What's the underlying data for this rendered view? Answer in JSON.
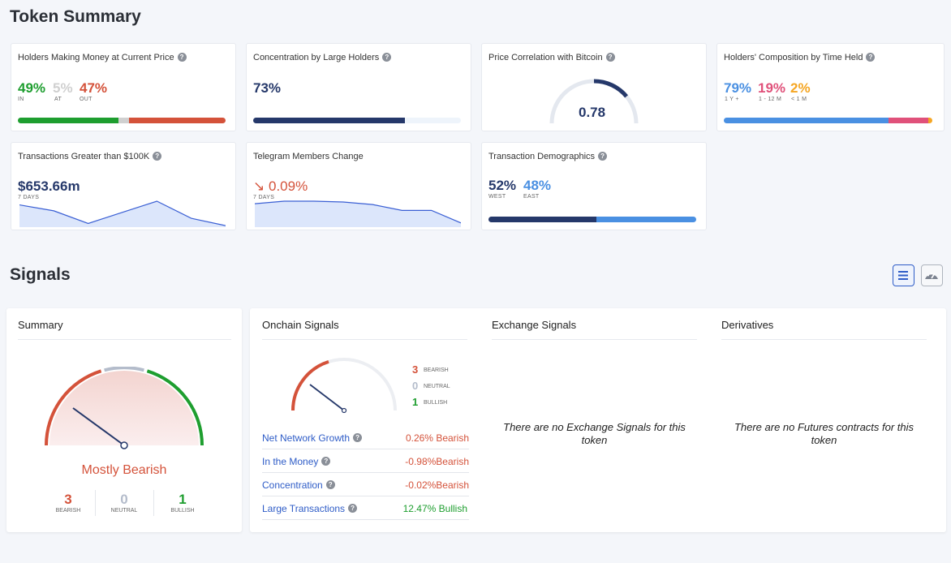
{
  "page": {
    "token_summary_title": "Token Summary",
    "signals_title": "Signals"
  },
  "cards": {
    "holders_money": {
      "label": "Holders Making Money at Current Price",
      "in_pct": "49%",
      "in_label": "IN",
      "at_pct": "5%",
      "at_label": "AT",
      "out_pct": "47%",
      "out_label": "OUT",
      "split": [
        49,
        5,
        47
      ]
    },
    "concentration": {
      "label": "Concentration by Large Holders",
      "value": "73%",
      "fill": 73
    },
    "btc_corr": {
      "label": "Price Correlation with Bitcoin",
      "value": "0.78",
      "fill": 0.78
    },
    "composition": {
      "label": "Holders' Composition by Time Held",
      "a_pct": "79%",
      "a_label": "1 Y +",
      "b_pct": "19%",
      "b_label": "1 - 12 M",
      "c_pct": "2%",
      "c_label": "< 1 M",
      "split": [
        79,
        19,
        2
      ]
    },
    "tx100k": {
      "label": "Transactions Greater than $100K",
      "value": "$653.66m",
      "period": "7 DAYS",
      "trend": [
        30,
        22,
        5,
        20,
        35,
        12,
        2
      ]
    },
    "telegram": {
      "label": "Telegram Members Change",
      "arrow": "↘",
      "value": "0.09%",
      "period": "7 DAYS",
      "trend": [
        28,
        31,
        31,
        30,
        27,
        20,
        20,
        5
      ]
    },
    "demographics": {
      "label": "Transaction Demographics",
      "west_pct": "52%",
      "west_label": "WEST",
      "east_pct": "48%",
      "east_label": "EAST",
      "split": [
        52,
        48
      ]
    }
  },
  "summary": {
    "heading": "Summary",
    "verdict": "Mostly Bearish",
    "bearish_count": "3",
    "bearish_label": "BEARISH",
    "neutral_count": "0",
    "neutral_label": "NEUTRAL",
    "bullish_count": "1",
    "bullish_label": "BULLISH"
  },
  "onchain": {
    "heading": "Onchain Signals",
    "bearish_count": "3",
    "bearish_label": "BEARISH",
    "neutral_count": "0",
    "neutral_label": "NEUTRAL",
    "bullish_count": "1",
    "bullish_label": "BULLISH",
    "rows": [
      {
        "name": "Net Network Growth",
        "value": "0.26% Bearish",
        "sentiment": "bearish"
      },
      {
        "name": "In the Money",
        "value": "-0.98%Bearish",
        "sentiment": "bearish"
      },
      {
        "name": "Concentration",
        "value": "-0.02%Bearish",
        "sentiment": "bearish"
      },
      {
        "name": "Large Transactions",
        "value": "12.47% Bullish",
        "sentiment": "bullish"
      }
    ]
  },
  "exchange": {
    "heading": "Exchange Signals",
    "empty": "There are no Exchange Signals for this token"
  },
  "derivatives": {
    "heading": "Derivatives",
    "empty": "There are no Futures contracts for this token"
  },
  "icons": {
    "list_view": "list-icon",
    "gauge_view": "gauge-icon",
    "help": "question-icon"
  },
  "colors": {
    "green": "#1e9e2f",
    "grey": "#d0d0d0",
    "red": "#d4523a",
    "navy": "#25386a",
    "light_blue": "#eef4fb",
    "blue": "#4a90e2",
    "pink": "#e0517a",
    "orange": "#f5a623",
    "link_blue": "#2e5cc7",
    "gauge_grey": "#b4bccb"
  }
}
